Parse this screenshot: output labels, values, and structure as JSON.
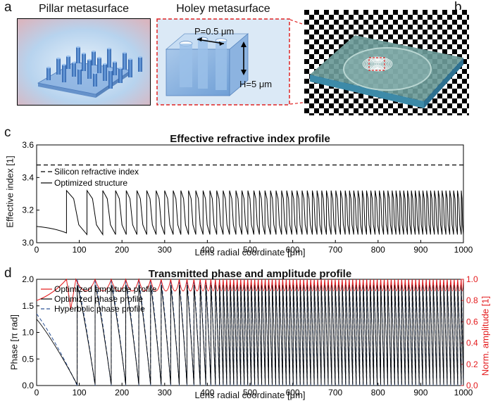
{
  "panel_a": {
    "label": "a",
    "pillar_title": "Pillar metasurface",
    "holey_title": "Holey metasurface",
    "period_label": "P=0.5 μm",
    "height_label": "H=5 μm"
  },
  "panel_b": {
    "label": "b"
  },
  "panel_c": {
    "label": "c"
  },
  "panel_d": {
    "label": "d"
  },
  "chart_data": [
    {
      "type": "line",
      "title": "Effective refractive index profile",
      "xlabel": "Lens radial coordinate [μm]",
      "ylabel": "Effective index [1]",
      "xlim": [
        0,
        1000
      ],
      "ylim": [
        3.0,
        3.6
      ],
      "xticks": [
        "0",
        "100",
        "200",
        "300",
        "400",
        "500",
        "600",
        "700",
        "800",
        "900",
        "1000"
      ],
      "yticks": [
        "3.0",
        "3.2",
        "3.4",
        "3.6"
      ],
      "legend": [
        "Silicon refractive index",
        "Optimized structure"
      ],
      "series": [
        {
          "name": "Silicon refractive index",
          "style": "dashed",
          "color": "#000000",
          "x": [
            0,
            1000
          ],
          "y": [
            3.477,
            3.477
          ]
        },
        {
          "name": "Optimized structure",
          "style": "solid",
          "color": "#000000",
          "start": [
            0,
            3.1
          ],
          "jump_positions": [
            70,
            118,
            155,
            185,
            210,
            235,
            258,
            280,
            300,
            320,
            338,
            356,
            373,
            390,
            406,
            422,
            437,
            452,
            467,
            481,
            495,
            509,
            522,
            535,
            548,
            561,
            574,
            586,
            598,
            610,
            622,
            634,
            646,
            657,
            668,
            679,
            690,
            701,
            712,
            723,
            733,
            743,
            753,
            763,
            773,
            783,
            793,
            803,
            813,
            823,
            833,
            842,
            851,
            860,
            869,
            878,
            887,
            896,
            905,
            914,
            923,
            932,
            941,
            950,
            959,
            968,
            977,
            986,
            995
          ],
          "max": 3.33,
          "min": 3.05
        }
      ]
    },
    {
      "type": "line",
      "title": "Transmitted phase and amplitude profile",
      "xlabel": "Lens radial coordinate [μm]",
      "ylabel": "Phase [π rad]",
      "ylabel_right": "Norm. amplitude [1]",
      "xlim": [
        0,
        1000
      ],
      "ylim": [
        0,
        2.0
      ],
      "ylim_right": [
        0,
        1.0
      ],
      "xticks": [
        "0",
        "100",
        "200",
        "300",
        "400",
        "500",
        "600",
        "700",
        "800",
        "900",
        "1000"
      ],
      "yticks": [
        "0.0",
        "0.5",
        "1.0",
        "1.5",
        "2.0"
      ],
      "yticks_right": [
        "0.0",
        "0.2",
        "0.4",
        "0.6",
        "0.8",
        "1.0"
      ],
      "legend": [
        "Optimized amplitude profile",
        "Optimized phase profile",
        "Hyperbolic phase profile"
      ],
      "series": [
        {
          "name": "Optimized amplitude profile",
          "color": "#e41a1c",
          "axis": "right",
          "max": 1.0,
          "min": 0.78
        },
        {
          "name": "Optimized phase profile",
          "color": "#000000",
          "axis": "left",
          "max": 1.9,
          "min": 0.0
        },
        {
          "name": "Hyperbolic phase profile",
          "color": "#2f5597",
          "style": "dashed",
          "axis": "left",
          "max": 2.0,
          "min": 0.0
        }
      ]
    }
  ]
}
